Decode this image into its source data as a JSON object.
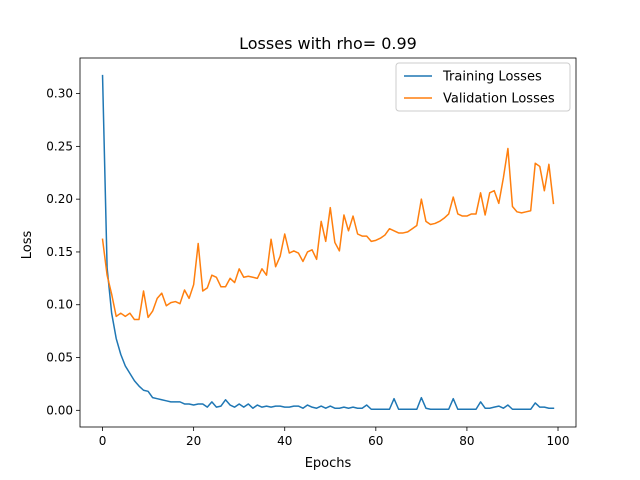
{
  "chart_data": {
    "type": "line",
    "title": "Losses with rho= 0.99",
    "xlabel": "Epochs",
    "ylabel": "Loss",
    "xlim": [
      -4.95,
      103.95
    ],
    "ylim": [
      -0.0158,
      0.3337
    ],
    "xticks": [
      0,
      20,
      40,
      60,
      80,
      100
    ],
    "xtick_labels": [
      "0",
      "20",
      "40",
      "60",
      "80",
      "100"
    ],
    "yticks": [
      0.0,
      0.05,
      0.1,
      0.15,
      0.2,
      0.25,
      0.3
    ],
    "ytick_labels": [
      "0.00",
      "0.05",
      "0.10",
      "0.15",
      "0.20",
      "0.25",
      "0.30"
    ],
    "grid": false,
    "legend_position": "upper right",
    "series": [
      {
        "name": "Training Losses",
        "color": "#1f77b4",
        "values": [
          0.317,
          0.135,
          0.092,
          0.068,
          0.053,
          0.042,
          0.035,
          0.028,
          0.023,
          0.019,
          0.018,
          0.012,
          0.011,
          0.01,
          0.009,
          0.008,
          0.008,
          0.008,
          0.006,
          0.006,
          0.005,
          0.006,
          0.006,
          0.003,
          0.008,
          0.003,
          0.004,
          0.01,
          0.005,
          0.003,
          0.006,
          0.003,
          0.006,
          0.002,
          0.005,
          0.003,
          0.004,
          0.003,
          0.004,
          0.004,
          0.003,
          0.003,
          0.004,
          0.004,
          0.002,
          0.005,
          0.003,
          0.002,
          0.004,
          0.002,
          0.004,
          0.002,
          0.002,
          0.003,
          0.002,
          0.003,
          0.002,
          0.002,
          0.005,
          0.001,
          0.001,
          0.001,
          0.001,
          0.001,
          0.011,
          0.001,
          0.001,
          0.001,
          0.001,
          0.001,
          0.012,
          0.002,
          0.001,
          0.001,
          0.001,
          0.001,
          0.001,
          0.011,
          0.001,
          0.001,
          0.001,
          0.001,
          0.001,
          0.008,
          0.002,
          0.002,
          0.003,
          0.004,
          0.002,
          0.005,
          0.001,
          0.001,
          0.001,
          0.001,
          0.001,
          0.007,
          0.003,
          0.003,
          0.002,
          0.002
        ]
      },
      {
        "name": "Validation Losses",
        "color": "#ff7f0e",
        "values": [
          0.162,
          0.128,
          0.11,
          0.089,
          0.092,
          0.089,
          0.092,
          0.086,
          0.086,
          0.113,
          0.088,
          0.094,
          0.106,
          0.111,
          0.099,
          0.102,
          0.103,
          0.101,
          0.114,
          0.106,
          0.119,
          0.158,
          0.113,
          0.116,
          0.128,
          0.126,
          0.117,
          0.117,
          0.125,
          0.121,
          0.134,
          0.126,
          0.127,
          0.126,
          0.125,
          0.134,
          0.128,
          0.162,
          0.136,
          0.146,
          0.167,
          0.149,
          0.151,
          0.149,
          0.141,
          0.15,
          0.152,
          0.143,
          0.179,
          0.16,
          0.192,
          0.159,
          0.151,
          0.185,
          0.17,
          0.184,
          0.167,
          0.165,
          0.165,
          0.16,
          0.161,
          0.163,
          0.166,
          0.172,
          0.17,
          0.168,
          0.168,
          0.169,
          0.172,
          0.175,
          0.2,
          0.179,
          0.176,
          0.177,
          0.179,
          0.182,
          0.186,
          0.202,
          0.186,
          0.184,
          0.184,
          0.186,
          0.186,
          0.206,
          0.185,
          0.206,
          0.208,
          0.196,
          0.22,
          0.248,
          0.193,
          0.188,
          0.187,
          0.188,
          0.189,
          0.234,
          0.231,
          0.208,
          0.233,
          0.196
        ]
      }
    ]
  }
}
